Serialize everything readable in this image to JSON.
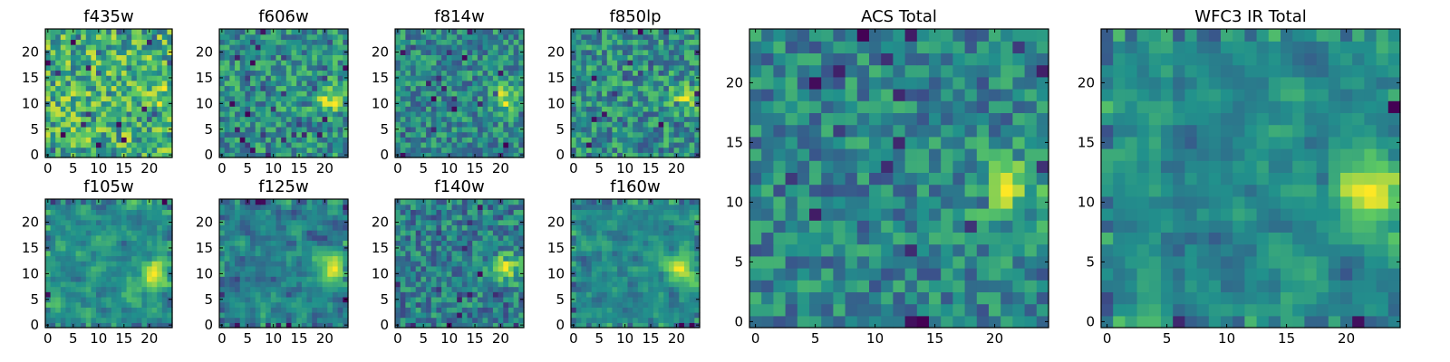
{
  "chart_data": [
    {
      "type": "heatmap",
      "title": "f435w",
      "colormap": "viridis",
      "grid_size": 25,
      "seed": 11,
      "hotspot": [
        21,
        11
      ],
      "hotspot_strength": 0.15,
      "xlim": [
        0,
        24
      ],
      "ylim": [
        0,
        24
      ],
      "xticks": [
        0,
        5,
        10,
        15,
        20
      ],
      "yticks": [
        0,
        5,
        10,
        15,
        20
      ]
    },
    {
      "type": "heatmap",
      "title": "f606w",
      "colormap": "viridis",
      "grid_size": 25,
      "seed": 23,
      "hotspot": [
        21,
        11
      ],
      "hotspot_strength": 0.35,
      "xlim": [
        0,
        24
      ],
      "ylim": [
        0,
        24
      ],
      "xticks": [
        0,
        5,
        10,
        15,
        20
      ],
      "yticks": [
        0,
        5,
        10,
        15,
        20
      ]
    },
    {
      "type": "heatmap",
      "title": "f814w",
      "colormap": "viridis",
      "grid_size": 25,
      "seed": 37,
      "hotspot": [
        21,
        11
      ],
      "hotspot_strength": 0.4,
      "xlim": [
        0,
        24
      ],
      "ylim": [
        0,
        24
      ],
      "xticks": [
        0,
        5,
        10,
        15,
        20
      ],
      "yticks": [
        0,
        5,
        10,
        15,
        20
      ]
    },
    {
      "type": "heatmap",
      "title": "f850lp",
      "colormap": "viridis",
      "grid_size": 25,
      "seed": 41,
      "hotspot": [
        21,
        11
      ],
      "hotspot_strength": 0.3,
      "xlim": [
        0,
        24
      ],
      "ylim": [
        0,
        24
      ],
      "xticks": [
        0,
        5,
        10,
        15,
        20
      ],
      "yticks": [
        0,
        5,
        10,
        15,
        20
      ]
    },
    {
      "type": "heatmap",
      "title": "f105w",
      "colormap": "viridis",
      "grid_size": 25,
      "seed": 53,
      "hotspot": [
        21,
        10
      ],
      "hotspot_strength": 0.5,
      "xlim": [
        0,
        24
      ],
      "ylim": [
        0,
        24
      ],
      "xticks": [
        0,
        5,
        10,
        15,
        20
      ],
      "yticks": [
        0,
        5,
        10,
        15,
        20
      ]
    },
    {
      "type": "heatmap",
      "title": "f125w",
      "colormap": "viridis",
      "grid_size": 25,
      "seed": 67,
      "hotspot": [
        21,
        11
      ],
      "hotspot_strength": 0.5,
      "xlim": [
        0,
        24
      ],
      "ylim": [
        0,
        24
      ],
      "xticks": [
        0,
        5,
        10,
        15,
        20
      ],
      "yticks": [
        0,
        5,
        10,
        15,
        20
      ]
    },
    {
      "type": "heatmap",
      "title": "f140w",
      "colormap": "viridis",
      "grid_size": 25,
      "seed": 79,
      "hotspot": [
        21,
        11
      ],
      "hotspot_strength": 0.45,
      "xlim": [
        0,
        24
      ],
      "ylim": [
        0,
        24
      ],
      "xticks": [
        0,
        5,
        10,
        15,
        20
      ],
      "yticks": [
        0,
        5,
        10,
        15,
        20
      ]
    },
    {
      "type": "heatmap",
      "title": "f160w",
      "colormap": "viridis",
      "grid_size": 25,
      "seed": 83,
      "hotspot": [
        21,
        11
      ],
      "hotspot_strength": 0.55,
      "xlim": [
        0,
        24
      ],
      "ylim": [
        0,
        24
      ],
      "xticks": [
        0,
        5,
        10,
        15,
        20
      ],
      "yticks": [
        0,
        5,
        10,
        15,
        20
      ]
    },
    {
      "type": "heatmap",
      "title": "ACS Total",
      "colormap": "viridis",
      "grid_size": 25,
      "seed": 97,
      "hotspot": [
        21,
        11
      ],
      "hotspot_strength": 0.45,
      "xlim": [
        0,
        24
      ],
      "ylim": [
        0,
        24
      ],
      "xticks": [
        0,
        5,
        10,
        15,
        20
      ],
      "yticks": [
        0,
        5,
        10,
        15,
        20
      ]
    },
    {
      "type": "heatmap",
      "title": "WFC3 IR Total",
      "colormap": "viridis",
      "grid_size": 25,
      "seed": 101,
      "hotspot": [
        22,
        11
      ],
      "hotspot_strength": 0.6,
      "xlim": [
        0,
        24
      ],
      "ylim": [
        0,
        24
      ],
      "xticks": [
        0,
        5,
        10,
        15,
        20
      ],
      "yticks": [
        0,
        5,
        10,
        15,
        20
      ]
    }
  ],
  "colors": {
    "viridis_stops": [
      "#440154",
      "#3b528b",
      "#21918c",
      "#5ec962",
      "#fde725"
    ],
    "frame": "#000000",
    "background": "#ffffff"
  }
}
